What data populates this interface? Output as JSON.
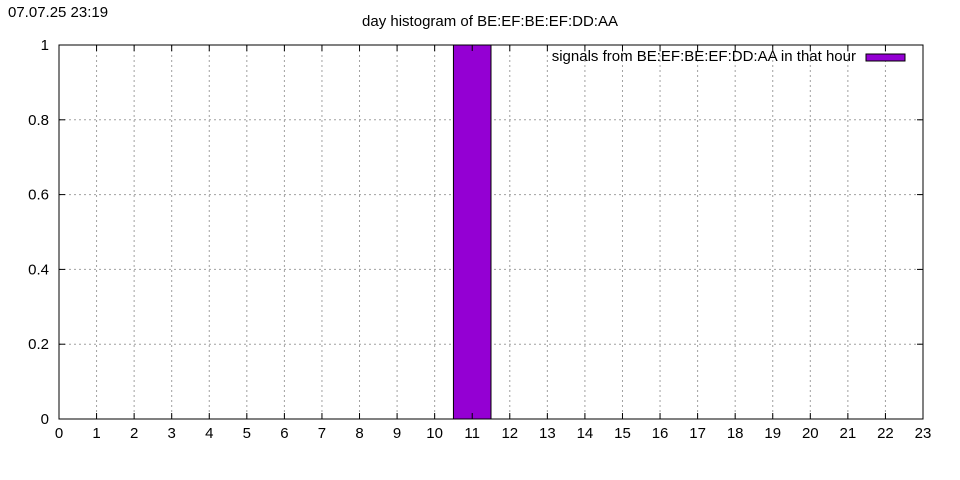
{
  "header": {
    "timestamp": "07.07.25 23:19"
  },
  "chart_data": {
    "type": "bar",
    "title": "day histogram of BE:EF:BE:EF:DD:AA",
    "xlabel": "",
    "ylabel": "",
    "xlim": [
      0,
      23
    ],
    "ylim": [
      0,
      1
    ],
    "xticks": [
      "0",
      "1",
      "2",
      "3",
      "4",
      "5",
      "6",
      "7",
      "8",
      "9",
      "10",
      "11",
      "12",
      "13",
      "14",
      "15",
      "16",
      "17",
      "18",
      "19",
      "20",
      "21",
      "22",
      "23"
    ],
    "yticks": [
      "0",
      "0.2",
      "0.4",
      "0.6",
      "0.8",
      "1"
    ],
    "grid": true,
    "legend_position": "top-right",
    "series": [
      {
        "name": "signals from BE:EF:BE:EF:DD:AA in that hour",
        "color": "#9400d3",
        "bars": [
          {
            "x": 11,
            "value": 1
          }
        ]
      }
    ]
  }
}
